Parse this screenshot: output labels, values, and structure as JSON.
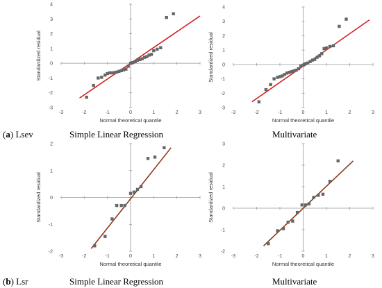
{
  "row_labels": [
    {
      "letter": "a",
      "name": "Lsev"
    },
    {
      "letter": "b",
      "name": "Lsr"
    }
  ],
  "captions": [
    "Simple Linear Regression",
    "Multivariate",
    "Simple Linear Regression",
    "Multivariate"
  ],
  "chart_data": [
    {
      "type": "scatter",
      "title": "Simple Linear Regression",
      "xlabel": "Normal theoretical quantile",
      "ylabel": "Standardized residual",
      "xlim": [
        -3,
        3
      ],
      "ylim": [
        -3,
        4
      ],
      "xticks": [
        -3,
        -2,
        -1,
        0,
        1,
        2,
        3
      ],
      "yticks": [
        -3,
        -2,
        -1,
        0,
        1,
        2,
        3,
        4
      ],
      "marker_color": "#666666",
      "line_color": "#d42020",
      "fit_line": {
        "x": [
          -2.2,
          3.0
        ],
        "y": [
          -2.35,
          3.2
        ]
      },
      "points": [
        [
          -1.9,
          -2.3
        ],
        [
          -1.6,
          -1.5
        ],
        [
          -1.4,
          -1.0
        ],
        [
          -1.25,
          -0.95
        ],
        [
          -1.1,
          -0.8
        ],
        [
          -1.0,
          -0.7
        ],
        [
          -0.9,
          -0.65
        ],
        [
          -0.8,
          -0.65
        ],
        [
          -0.7,
          -0.63
        ],
        [
          -0.6,
          -0.6
        ],
        [
          -0.5,
          -0.55
        ],
        [
          -0.4,
          -0.5
        ],
        [
          -0.3,
          -0.45
        ],
        [
          -0.2,
          -0.4
        ],
        [
          -0.1,
          -0.2
        ],
        [
          0.0,
          0.0
        ],
        [
          0.05,
          0.02
        ],
        [
          0.1,
          0.05
        ],
        [
          0.2,
          0.1
        ],
        [
          0.3,
          0.2
        ],
        [
          0.4,
          0.25
        ],
        [
          0.5,
          0.3
        ],
        [
          0.6,
          0.4
        ],
        [
          0.7,
          0.45
        ],
        [
          0.8,
          0.55
        ],
        [
          0.9,
          0.6
        ],
        [
          1.0,
          0.85
        ],
        [
          1.15,
          0.95
        ],
        [
          1.3,
          1.05
        ],
        [
          1.55,
          3.1
        ],
        [
          1.85,
          3.35
        ]
      ]
    },
    {
      "type": "scatter",
      "title": "Multivariate",
      "xlabel": "Normal theoretical quantile",
      "ylabel": "Standardized residual",
      "xlim": [
        -3,
        3
      ],
      "ylim": [
        -3,
        4
      ],
      "xticks": [
        -3,
        -2,
        -1,
        0,
        1,
        2,
        3
      ],
      "yticks": [
        -3,
        -2,
        -1,
        0,
        1,
        2,
        3,
        4
      ],
      "marker_color": "#666666",
      "line_color": "#d42020",
      "fit_line": {
        "x": [
          -2.2,
          2.85
        ],
        "y": [
          -2.6,
          3.1
        ]
      },
      "points": [
        [
          -1.9,
          -2.6
        ],
        [
          -1.6,
          -1.75
        ],
        [
          -1.4,
          -1.4
        ],
        [
          -1.25,
          -1.0
        ],
        [
          -1.1,
          -0.9
        ],
        [
          -1.0,
          -0.85
        ],
        [
          -0.9,
          -0.8
        ],
        [
          -0.8,
          -0.7
        ],
        [
          -0.7,
          -0.6
        ],
        [
          -0.6,
          -0.55
        ],
        [
          -0.5,
          -0.5
        ],
        [
          -0.4,
          -0.45
        ],
        [
          -0.3,
          -0.4
        ],
        [
          -0.2,
          -0.3
        ],
        [
          -0.1,
          -0.1
        ],
        [
          0.0,
          -0.05
        ],
        [
          0.05,
          0.0
        ],
        [
          0.1,
          0.05
        ],
        [
          0.2,
          0.1
        ],
        [
          0.3,
          0.2
        ],
        [
          0.4,
          0.3
        ],
        [
          0.5,
          0.35
        ],
        [
          0.6,
          0.5
        ],
        [
          0.7,
          0.6
        ],
        [
          0.8,
          0.75
        ],
        [
          0.9,
          1.1
        ],
        [
          1.0,
          1.15
        ],
        [
          1.15,
          1.25
        ],
        [
          1.3,
          1.3
        ],
        [
          1.55,
          2.65
        ],
        [
          1.85,
          3.15
        ]
      ]
    },
    {
      "type": "scatter",
      "title": "Simple Linear Regression",
      "xlabel": "Normal theoretical quantile",
      "ylabel": "Standardized residual",
      "xlim": [
        -3,
        3
      ],
      "ylim": [
        -2,
        2
      ],
      "xticks": [
        -3,
        -2,
        -1,
        0,
        1,
        2,
        3
      ],
      "yticks": [
        -2,
        -1,
        0,
        1,
        2
      ],
      "marker_color": "#666666",
      "line_color": "#8b3a1a",
      "fit_line": {
        "x": [
          -1.7,
          1.75
        ],
        "y": [
          -1.9,
          1.85
        ]
      },
      "points": [
        [
          -1.55,
          -1.8
        ],
        [
          -1.1,
          -1.45
        ],
        [
          -0.8,
          -0.8
        ],
        [
          -0.6,
          -0.3
        ],
        [
          -0.4,
          -0.3
        ],
        [
          -0.25,
          -0.3
        ],
        [
          0.0,
          0.15
        ],
        [
          0.15,
          0.2
        ],
        [
          0.3,
          0.3
        ],
        [
          0.45,
          0.4
        ],
        [
          0.75,
          1.45
        ],
        [
          1.05,
          1.5
        ],
        [
          1.45,
          1.85
        ]
      ]
    },
    {
      "type": "scatter",
      "title": "Multivariate",
      "xlabel": "Normal theoretical quantile",
      "ylabel": "Standardized residual",
      "xlim": [
        -3,
        3
      ],
      "ylim": [
        -2,
        3
      ],
      "xticks": [
        -3,
        -2,
        -1,
        0,
        1,
        2,
        3
      ],
      "yticks": [
        -2,
        -1,
        0,
        1,
        2,
        3
      ],
      "marker_color": "#666666",
      "line_color": "#8b3a1a",
      "fit_line": {
        "x": [
          -1.7,
          2.15
        ],
        "y": [
          -1.75,
          2.2
        ]
      },
      "points": [
        [
          -1.5,
          -1.65
        ],
        [
          -1.1,
          -1.05
        ],
        [
          -0.85,
          -0.95
        ],
        [
          -0.65,
          -0.65
        ],
        [
          -0.45,
          -0.6
        ],
        [
          -0.25,
          -0.2
        ],
        [
          -0.05,
          0.15
        ],
        [
          0.1,
          0.15
        ],
        [
          0.25,
          0.2
        ],
        [
          0.45,
          0.5
        ],
        [
          0.65,
          0.6
        ],
        [
          0.85,
          0.65
        ],
        [
          1.15,
          1.25
        ],
        [
          1.5,
          2.2
        ]
      ]
    }
  ]
}
